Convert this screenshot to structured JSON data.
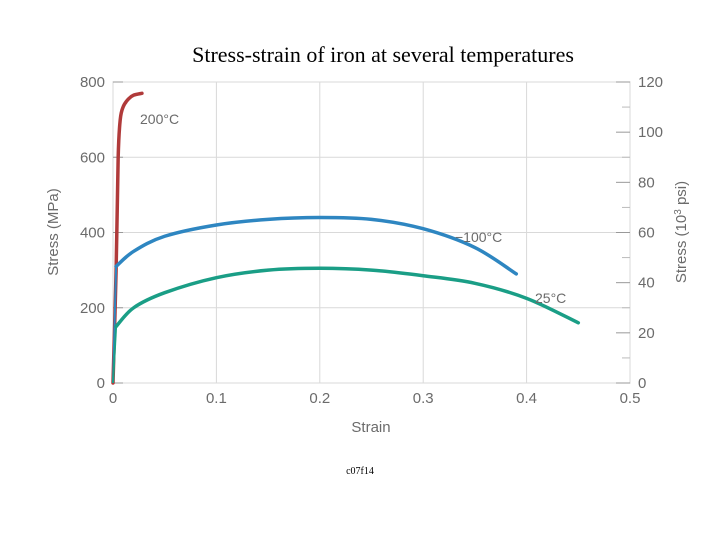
{
  "slide": {
    "title": "Stress-strain of iron at several temperatures",
    "caption": "c07f14"
  },
  "chart_data": {
    "type": "line",
    "title": "Stress-strain of iron at several temperatures",
    "xlabel": "Strain",
    "ylabel": "Stress (MPa)",
    "y2label": "Stress (10³ psi)",
    "xlim": [
      0,
      0.5
    ],
    "ylim": [
      0,
      800
    ],
    "y2lim": [
      0,
      120
    ],
    "x_ticks": [
      "0",
      "0.1",
      "0.2",
      "0.3",
      "0.4",
      "0.5"
    ],
    "y_ticks": [
      "0",
      "200",
      "400",
      "600",
      "800"
    ],
    "y2_ticks": [
      "0",
      "20",
      "40",
      "60",
      "80",
      "100",
      "120"
    ],
    "grid": true,
    "series": [
      {
        "name": "200°C",
        "color": "#b03a3a",
        "x": [
          0.0,
          0.003,
          0.005,
          0.007,
          0.01,
          0.015,
          0.02,
          0.028
        ],
        "y": [
          0,
          300,
          600,
          700,
          735,
          755,
          765,
          770
        ]
      },
      {
        "name": "−100°C",
        "color": "#2e86c1",
        "x": [
          0.003,
          0.02,
          0.05,
          0.1,
          0.15,
          0.2,
          0.25,
          0.3,
          0.35,
          0.39
        ],
        "y": [
          310,
          350,
          390,
          420,
          435,
          440,
          435,
          410,
          360,
          290
        ]
      },
      {
        "name": "25°C",
        "color": "#1a9e86",
        "x": [
          0.003,
          0.02,
          0.05,
          0.1,
          0.15,
          0.2,
          0.25,
          0.3,
          0.35,
          0.4,
          0.45
        ],
        "y": [
          150,
          200,
          240,
          280,
          300,
          305,
          300,
          285,
          265,
          225,
          160
        ]
      }
    ]
  }
}
